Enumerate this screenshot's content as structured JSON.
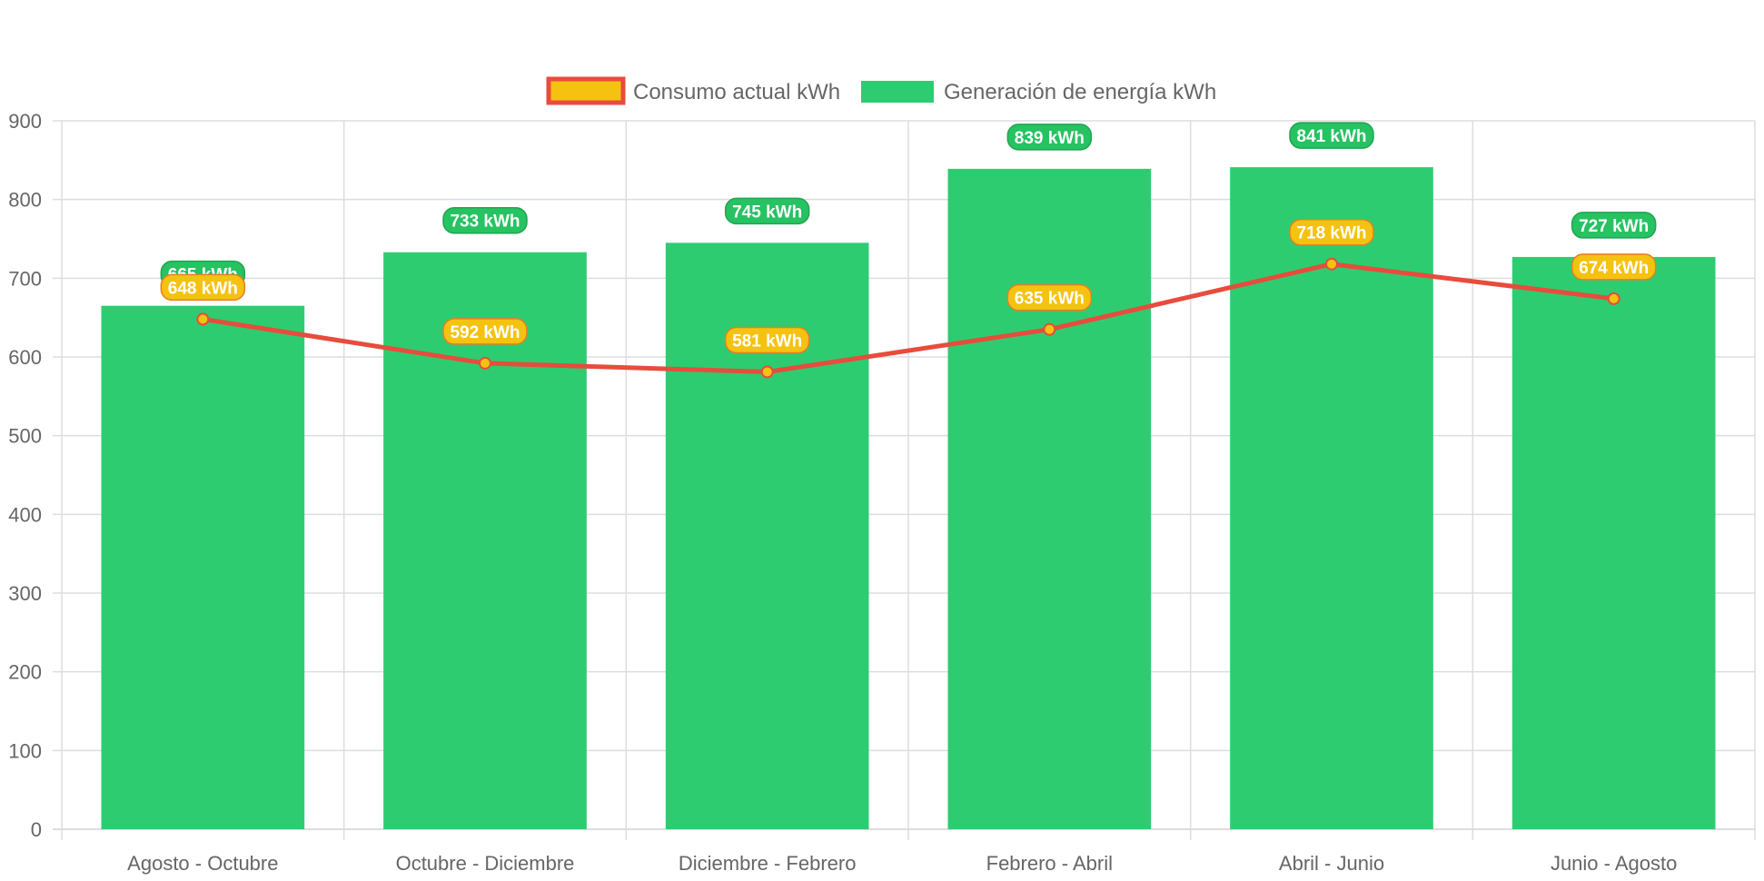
{
  "chart_data": {
    "type": "bar",
    "categories": [
      "Agosto - Octubre",
      "Octubre - Diciembre",
      "Diciembre - Febrero",
      "Febrero - Abril",
      "Abril - Junio",
      "Junio - Agosto"
    ],
    "series": [
      {
        "name": "Consumo actual kWh",
        "render": "line",
        "values": [
          648,
          592,
          581,
          635,
          718,
          674
        ],
        "labels": [
          "648 kWh",
          "592 kWh",
          "581 kWh",
          "635 kWh",
          "718 kWh",
          "674 kWh"
        ]
      },
      {
        "name": "Generación de energía kWh",
        "render": "bar",
        "values": [
          665,
          733,
          745,
          839,
          841,
          727
        ],
        "labels": [
          "665 kWh",
          "733 kWh",
          "745 kWh",
          "839 kWh",
          "841 kWh",
          "727 kWh"
        ]
      }
    ],
    "yticks": [
      "0",
      "100",
      "200",
      "300",
      "400",
      "500",
      "600",
      "700",
      "800",
      "900"
    ],
    "ylim": [
      0,
      900
    ],
    "grid": true,
    "legend_position": "top",
    "colors": {
      "bar": "#2ecc71",
      "bar_label_bg": "#27c262",
      "bar_label_border": "#1fa552",
      "line": "#e74c3c",
      "point_fill": "#f1c40f",
      "line_label_bg": "#f5c211",
      "line_label_border": "#e67e22",
      "grid": "#dddddd",
      "tick_text": "#666666"
    }
  }
}
